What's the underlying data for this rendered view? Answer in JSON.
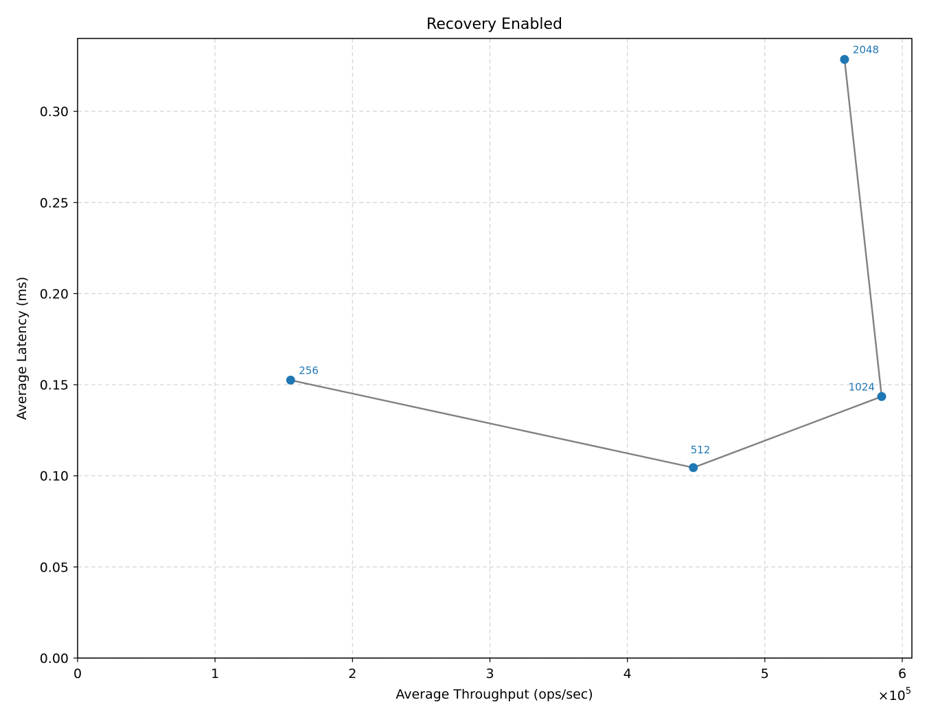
{
  "chart_data": {
    "type": "line",
    "title": "Recovery Enabled",
    "xlabel": "Average Throughput (ops/sec)",
    "ylabel": "Average Latency (ms)",
    "x_multiplier_label": "×10",
    "x_multiplier_exponent": "5",
    "xlim": [
      0,
      6.07
    ],
    "ylim": [
      0,
      0.34
    ],
    "x_ticks": [
      0,
      1,
      2,
      3,
      4,
      5,
      6
    ],
    "x_tick_labels": [
      "0",
      "1",
      "2",
      "3",
      "4",
      "5",
      "6"
    ],
    "y_ticks": [
      0,
      0.05,
      0.1,
      0.15,
      0.2,
      0.25,
      0.3
    ],
    "y_tick_labels": [
      "0.00",
      "0.05",
      "0.10",
      "0.15",
      "0.20",
      "0.25",
      "0.30"
    ],
    "grid": true,
    "x_units": "×10^5 ops/sec",
    "series": [
      {
        "line_color": "#808080",
        "marker_color": "#1f77b4",
        "points": [
          {
            "x": 1.55,
            "y": 0.1525,
            "label": "256"
          },
          {
            "x": 4.48,
            "y": 0.1045,
            "label": "512"
          },
          {
            "x": 5.85,
            "y": 0.1435,
            "label": "1024"
          },
          {
            "x": 5.58,
            "y": 0.3285,
            "label": "2048"
          }
        ]
      }
    ]
  }
}
